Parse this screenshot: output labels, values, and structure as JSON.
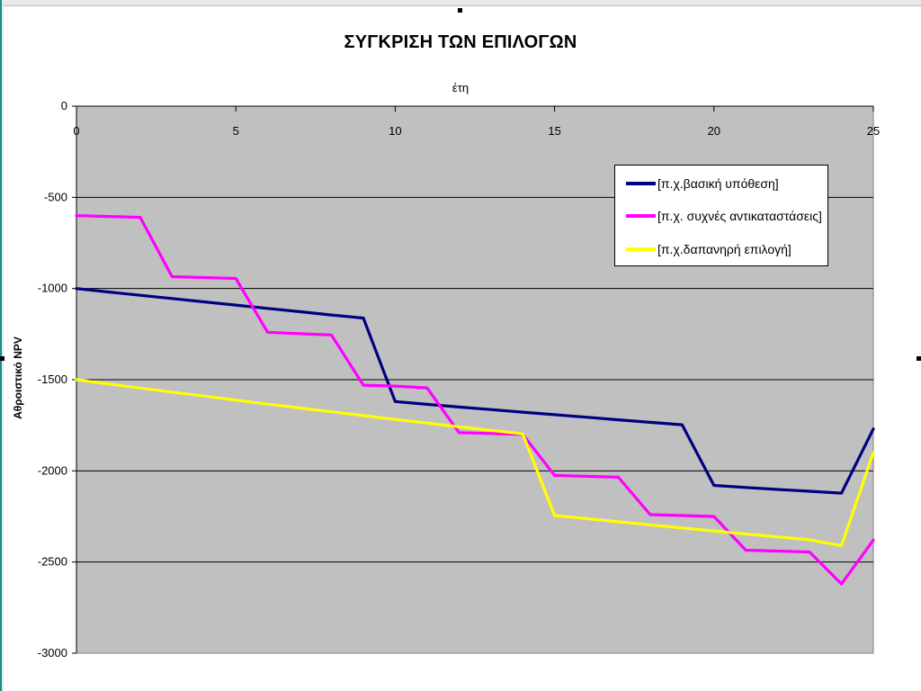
{
  "chart_data": {
    "type": "line",
    "title": "ΣΥΓΚΡΙΣΗ ΤΩΝ ΕΠΙΛΟΓΩΝ",
    "xlabel": "έτη",
    "ylabel": "Αθροιστικό NPV",
    "xlim": [
      0,
      25
    ],
    "ylim": [
      -3000,
      0
    ],
    "x_axis_position": "top",
    "x_ticks": [
      0,
      5,
      10,
      15,
      20,
      25
    ],
    "y_ticks": [
      0,
      -500,
      -1000,
      -1500,
      -2000,
      -2500,
      -3000
    ],
    "x_tick_labels": [
      "0",
      "5",
      "10",
      "15",
      "20",
      "25"
    ],
    "y_tick_labels": [
      "0",
      "-500",
      "-1000",
      "-1500",
      "-2000",
      "-2500",
      "-3000"
    ],
    "grid": "horizontal",
    "plot_background": "#c0c0c0",
    "legend_position": "top-right",
    "series": [
      {
        "name": "[π.χ.βασική υπόθεση]",
        "color": "#000080",
        "x": [
          0,
          1,
          2,
          3,
          4,
          5,
          6,
          7,
          8,
          9,
          10,
          11,
          12,
          13,
          14,
          15,
          16,
          17,
          18,
          19,
          20,
          21,
          22,
          23,
          24,
          25
        ],
        "y": [
          -1000,
          -1019,
          -1037,
          -1055,
          -1073,
          -1091,
          -1109,
          -1127,
          -1145,
          -1162,
          -1620,
          -1635,
          -1650,
          -1664,
          -1678,
          -1692,
          -1706,
          -1720,
          -1734,
          -1747,
          -2080,
          -2091,
          -2102,
          -2112,
          -2122,
          -1770
        ]
      },
      {
        "name": "[π.χ. συχνές αντικαταστάσεις]",
        "color": "#ff00ff",
        "x": [
          0,
          1,
          2,
          3,
          4,
          5,
          6,
          7,
          8,
          9,
          10,
          11,
          12,
          13,
          14,
          15,
          16,
          17,
          18,
          19,
          20,
          21,
          22,
          23,
          24,
          25
        ],
        "y": [
          -600,
          -605,
          -610,
          -935,
          -940,
          -945,
          -1240,
          -1248,
          -1255,
          -1530,
          -1535,
          -1545,
          -1790,
          -1795,
          -1800,
          -2025,
          -2030,
          -2035,
          -2240,
          -2245,
          -2250,
          -2435,
          -2440,
          -2445,
          -2620,
          -2380
        ]
      },
      {
        "name": "[π.χ.δαπανηρή επιλογή]",
        "color": "#ffff00",
        "x": [
          0,
          1,
          2,
          3,
          4,
          5,
          6,
          7,
          8,
          9,
          10,
          11,
          12,
          13,
          14,
          15,
          16,
          17,
          18,
          19,
          20,
          21,
          22,
          23,
          24,
          25
        ],
        "y": [
          -1500,
          -1523,
          -1546,
          -1568,
          -1590,
          -1612,
          -1634,
          -1655,
          -1676,
          -1697,
          -1718,
          -1738,
          -1758,
          -1778,
          -1797,
          -2245,
          -2262,
          -2279,
          -2296,
          -2313,
          -2330,
          -2346,
          -2362,
          -2378,
          -2410,
          -1900
        ]
      }
    ]
  }
}
